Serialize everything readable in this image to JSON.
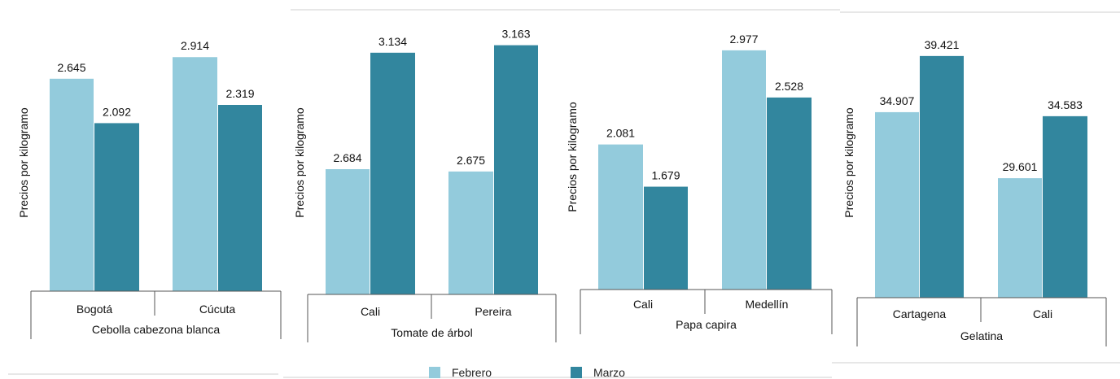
{
  "colors": {
    "febrero": "#93cbdc",
    "marzo": "#32869e",
    "axis": "#555555",
    "text": "#111111"
  },
  "legend": {
    "febrero": "Febrero",
    "marzo": "Marzo"
  },
  "chart_data": [
    {
      "type": "bar",
      "ylabel": "Precios por kilogramo",
      "group_label": "Cebolla cabezona blanca",
      "categories": [
        "Bogotá",
        "Cúcuta"
      ],
      "series": [
        {
          "name": "Febrero",
          "values": [
            2.645,
            2.914
          ],
          "labels": [
            "2.645",
            "2.914"
          ]
        },
        {
          "name": "Marzo",
          "values": [
            2.092,
            2.319
          ],
          "labels": [
            "2.092",
            "2.319"
          ]
        }
      ],
      "ylim": [
        0,
        3.2
      ]
    },
    {
      "type": "bar",
      "ylabel": "Precios por kilogramo",
      "group_label": "Tomate de árbol",
      "categories": [
        "Cali",
        "Pereira"
      ],
      "series": [
        {
          "name": "Febrero",
          "values": [
            2.684,
            2.675
          ],
          "labels": [
            "2.684",
            "2.675"
          ]
        },
        {
          "name": "Marzo",
          "values": [
            3.134,
            3.163
          ],
          "labels": [
            "3.134",
            "3.163"
          ]
        }
      ],
      "ylim": [
        2.2,
        3.3
      ]
    },
    {
      "type": "bar",
      "ylabel": "Precios por kilogramo",
      "group_label": "Papa capira",
      "categories": [
        "Cali",
        "Medellín"
      ],
      "series": [
        {
          "name": "Febrero",
          "values": [
            2.081,
            2.977
          ],
          "labels": [
            "2.081",
            "2.977"
          ]
        },
        {
          "name": "Marzo",
          "values": [
            1.679,
            2.528
          ],
          "labels": [
            "1.679",
            "2.528"
          ]
        }
      ],
      "ylim": [
        0.7,
        3.1
      ]
    },
    {
      "type": "bar",
      "ylabel": "Precios por kilogramo",
      "group_label": "Gelatina",
      "categories": [
        "Cartagena",
        "Cali"
      ],
      "series": [
        {
          "name": "Febrero",
          "values": [
            34.907,
            29.601
          ],
          "labels": [
            "34.907",
            "29.601"
          ]
        },
        {
          "name": "Marzo",
          "values": [
            39.421,
            34.583
          ],
          "labels": [
            "39.421",
            "34.583"
          ]
        }
      ],
      "ylim": [
        20,
        40
      ]
    }
  ]
}
